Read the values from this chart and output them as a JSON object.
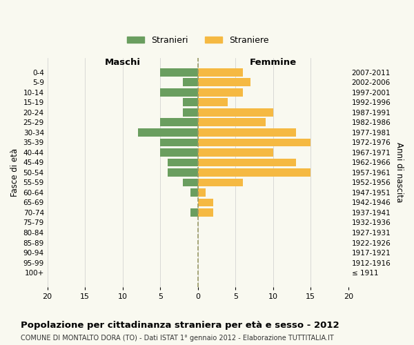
{
  "age_groups": [
    "100+",
    "95-99",
    "90-94",
    "85-89",
    "80-84",
    "75-79",
    "70-74",
    "65-69",
    "60-64",
    "55-59",
    "50-54",
    "45-49",
    "40-44",
    "35-39",
    "30-34",
    "25-29",
    "20-24",
    "15-19",
    "10-14",
    "5-9",
    "0-4"
  ],
  "birth_years": [
    "≤ 1911",
    "1912-1916",
    "1917-1921",
    "1922-1926",
    "1927-1931",
    "1932-1936",
    "1937-1941",
    "1942-1946",
    "1947-1951",
    "1952-1956",
    "1957-1961",
    "1962-1966",
    "1967-1971",
    "1972-1976",
    "1977-1981",
    "1982-1986",
    "1987-1991",
    "1992-1996",
    "1997-2001",
    "2002-2006",
    "2007-2011"
  ],
  "maschi": [
    0,
    0,
    0,
    0,
    0,
    0,
    1,
    0,
    1,
    2,
    4,
    4,
    5,
    5,
    8,
    5,
    2,
    2,
    5,
    2,
    5
  ],
  "femmine": [
    0,
    0,
    0,
    0,
    0,
    0,
    2,
    2,
    1,
    6,
    15,
    13,
    10,
    15,
    13,
    9,
    10,
    4,
    6,
    7,
    6
  ],
  "color_maschi": "#6a9e5f",
  "color_femmine": "#f5b942",
  "title": "Popolazione per cittadinanza straniera per età e sesso - 2012",
  "subtitle": "COMUNE DI MONTALTO DORA (TO) - Dati ISTAT 1° gennaio 2012 - Elaborazione TUTTITALIA.IT",
  "xlabel_left": "Maschi",
  "xlabel_right": "Femmine",
  "ylabel_left": "Fasce di età",
  "ylabel_right": "Anni di nascita",
  "legend_maschi": "Stranieri",
  "legend_femmine": "Straniere",
  "xlim": 20,
  "background_color": "#f9f9f0",
  "grid_color": "#cccccc",
  "vline_color": "#999966"
}
